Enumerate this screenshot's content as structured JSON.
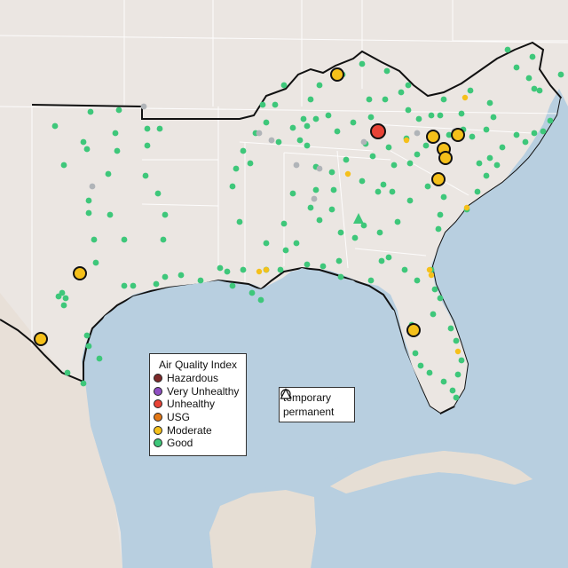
{
  "legend": {
    "title": "Air Quality Index",
    "items": [
      {
        "label": "Hazardous",
        "color": "#7e2a2a"
      },
      {
        "label": "Very Unhealthy",
        "color": "#8f4fc2"
      },
      {
        "label": "Unhealthy",
        "color": "#e84336"
      },
      {
        "label": "USG",
        "color": "#e37817"
      },
      {
        "label": "Moderate",
        "color": "#f5c01a"
      },
      {
        "label": "Good",
        "color": "#3ec77a"
      }
    ]
  },
  "shape_legend": {
    "items": [
      {
        "label": "temporary",
        "icon": "circle-icon"
      },
      {
        "label": "permanent",
        "icon": "triangle-icon"
      }
    ]
  },
  "colors": {
    "water": "#b8cfe0",
    "land": "#ebe6e2",
    "good": "#3ec77a",
    "moderate": "#f5c01a",
    "unhealthy": "#e84336",
    "no_data": "#b0b4b8"
  }
}
